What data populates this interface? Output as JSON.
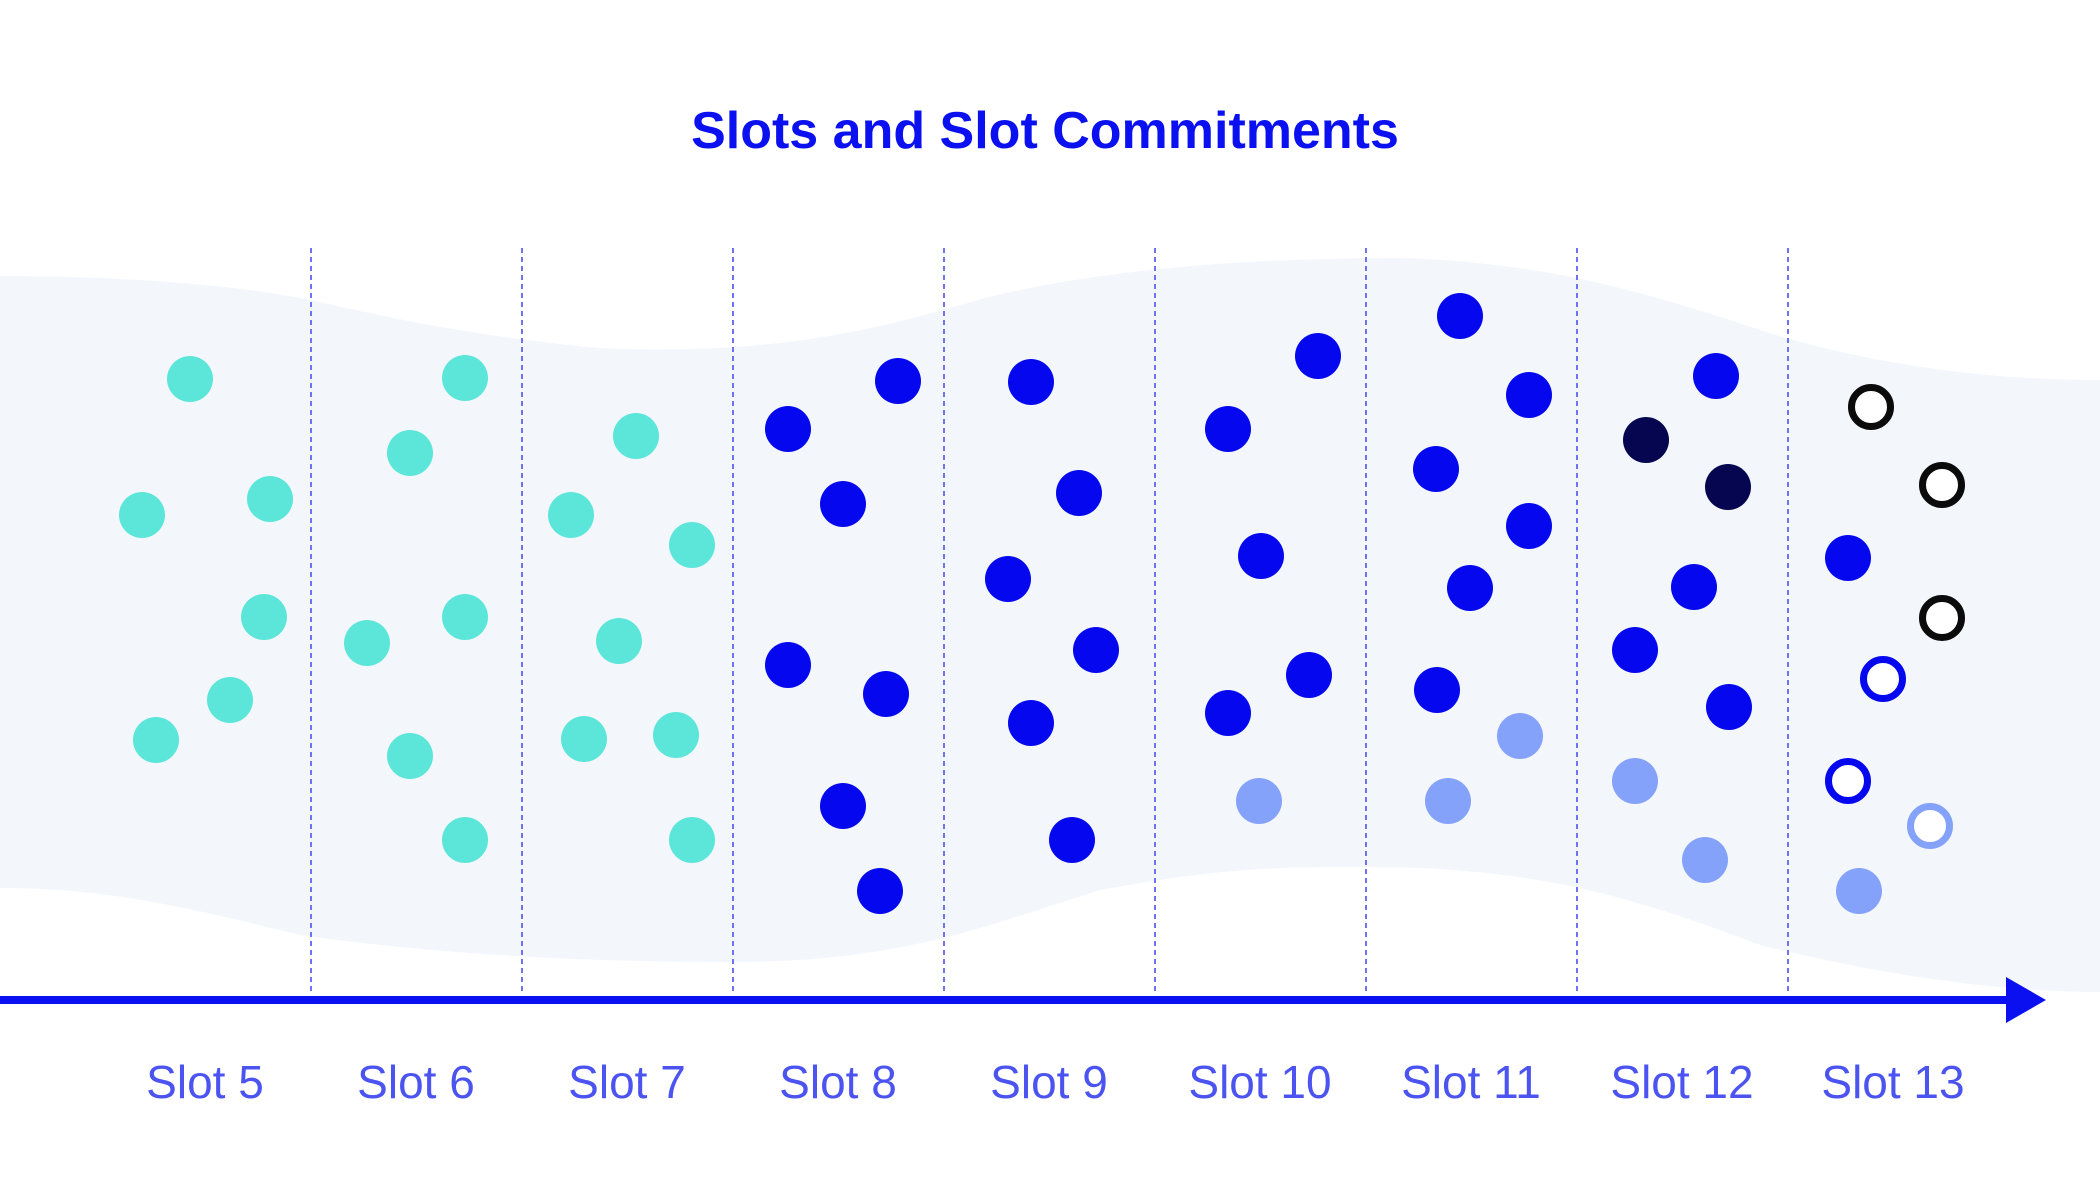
{
  "title": "Slots and Slot Commitments",
  "colors": {
    "band": "#f3f7fc",
    "timeline": "#0a10ef",
    "divider": "#6d73f2",
    "title": "#0a10ef",
    "label": "#4b53f0",
    "dot_teal": "#5ce6d9",
    "dot_blue": "#0508ee",
    "dot_light_blue": "#85a2fb",
    "dot_navy": "#05064f",
    "ring_black": "#0b0b0b",
    "ring_blue": "#0508ee",
    "ring_light_blue": "#85a2fb"
  },
  "slots": [
    {
      "label": "Slot 5",
      "blocks": [
        "teal",
        "teal",
        "teal",
        "teal",
        "teal",
        "teal"
      ]
    },
    {
      "label": "Slot 6",
      "blocks": [
        "teal",
        "teal",
        "teal",
        "teal",
        "teal",
        "teal"
      ]
    },
    {
      "label": "Slot 7",
      "blocks": [
        "teal",
        "teal",
        "teal",
        "teal",
        "teal",
        "teal",
        "teal"
      ]
    },
    {
      "label": "Slot 8",
      "blocks": [
        "blue",
        "blue",
        "blue",
        "blue",
        "blue",
        "blue",
        "blue"
      ]
    },
    {
      "label": "Slot 9",
      "blocks": [
        "blue",
        "blue",
        "blue",
        "blue",
        "blue",
        "blue"
      ]
    },
    {
      "label": "Slot 10",
      "blocks": [
        "blue",
        "blue",
        "blue",
        "blue",
        "blue",
        "light_blue"
      ]
    },
    {
      "label": "Slot 11",
      "blocks": [
        "blue",
        "blue",
        "blue",
        "blue",
        "blue",
        "blue",
        "light_blue",
        "light_blue"
      ]
    },
    {
      "label": "Slot 12",
      "blocks": [
        "blue",
        "navy",
        "navy",
        "blue",
        "blue",
        "blue",
        "light_blue",
        "light_blue"
      ]
    },
    {
      "label": "Slot 13",
      "blocks": [
        "ring_black",
        "ring_black",
        "blue",
        "ring_black",
        "ring_blue",
        "ring_blue",
        "ring_light_blue",
        "light_blue"
      ]
    }
  ]
}
